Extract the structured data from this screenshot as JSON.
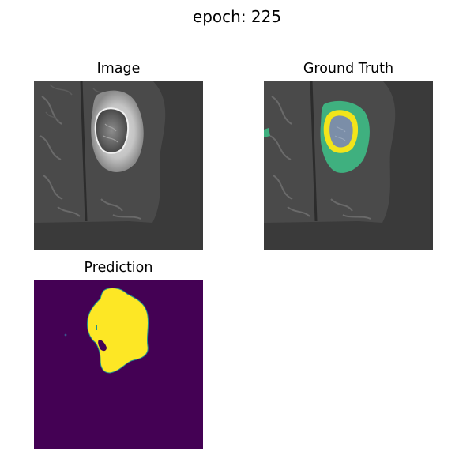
{
  "figure": {
    "suptitle": "epoch: 225"
  },
  "panels": [
    {
      "id": "image",
      "title": "Image"
    },
    {
      "id": "ground_truth",
      "title": "Ground Truth"
    },
    {
      "id": "prediction",
      "title": "Prediction"
    }
  ],
  "colors": {
    "background_gray": "#3a3a3a",
    "tissue_gray": "#4d4d4d",
    "bright_tissue": "#d2d2d2",
    "overlay_green": "#3fb07f",
    "overlay_yellow": "#f2e41a",
    "overlay_core": "#7b8ea8",
    "pred_background": "#440154",
    "pred_foreground": "#fde725",
    "pred_edge": "#21918c"
  }
}
